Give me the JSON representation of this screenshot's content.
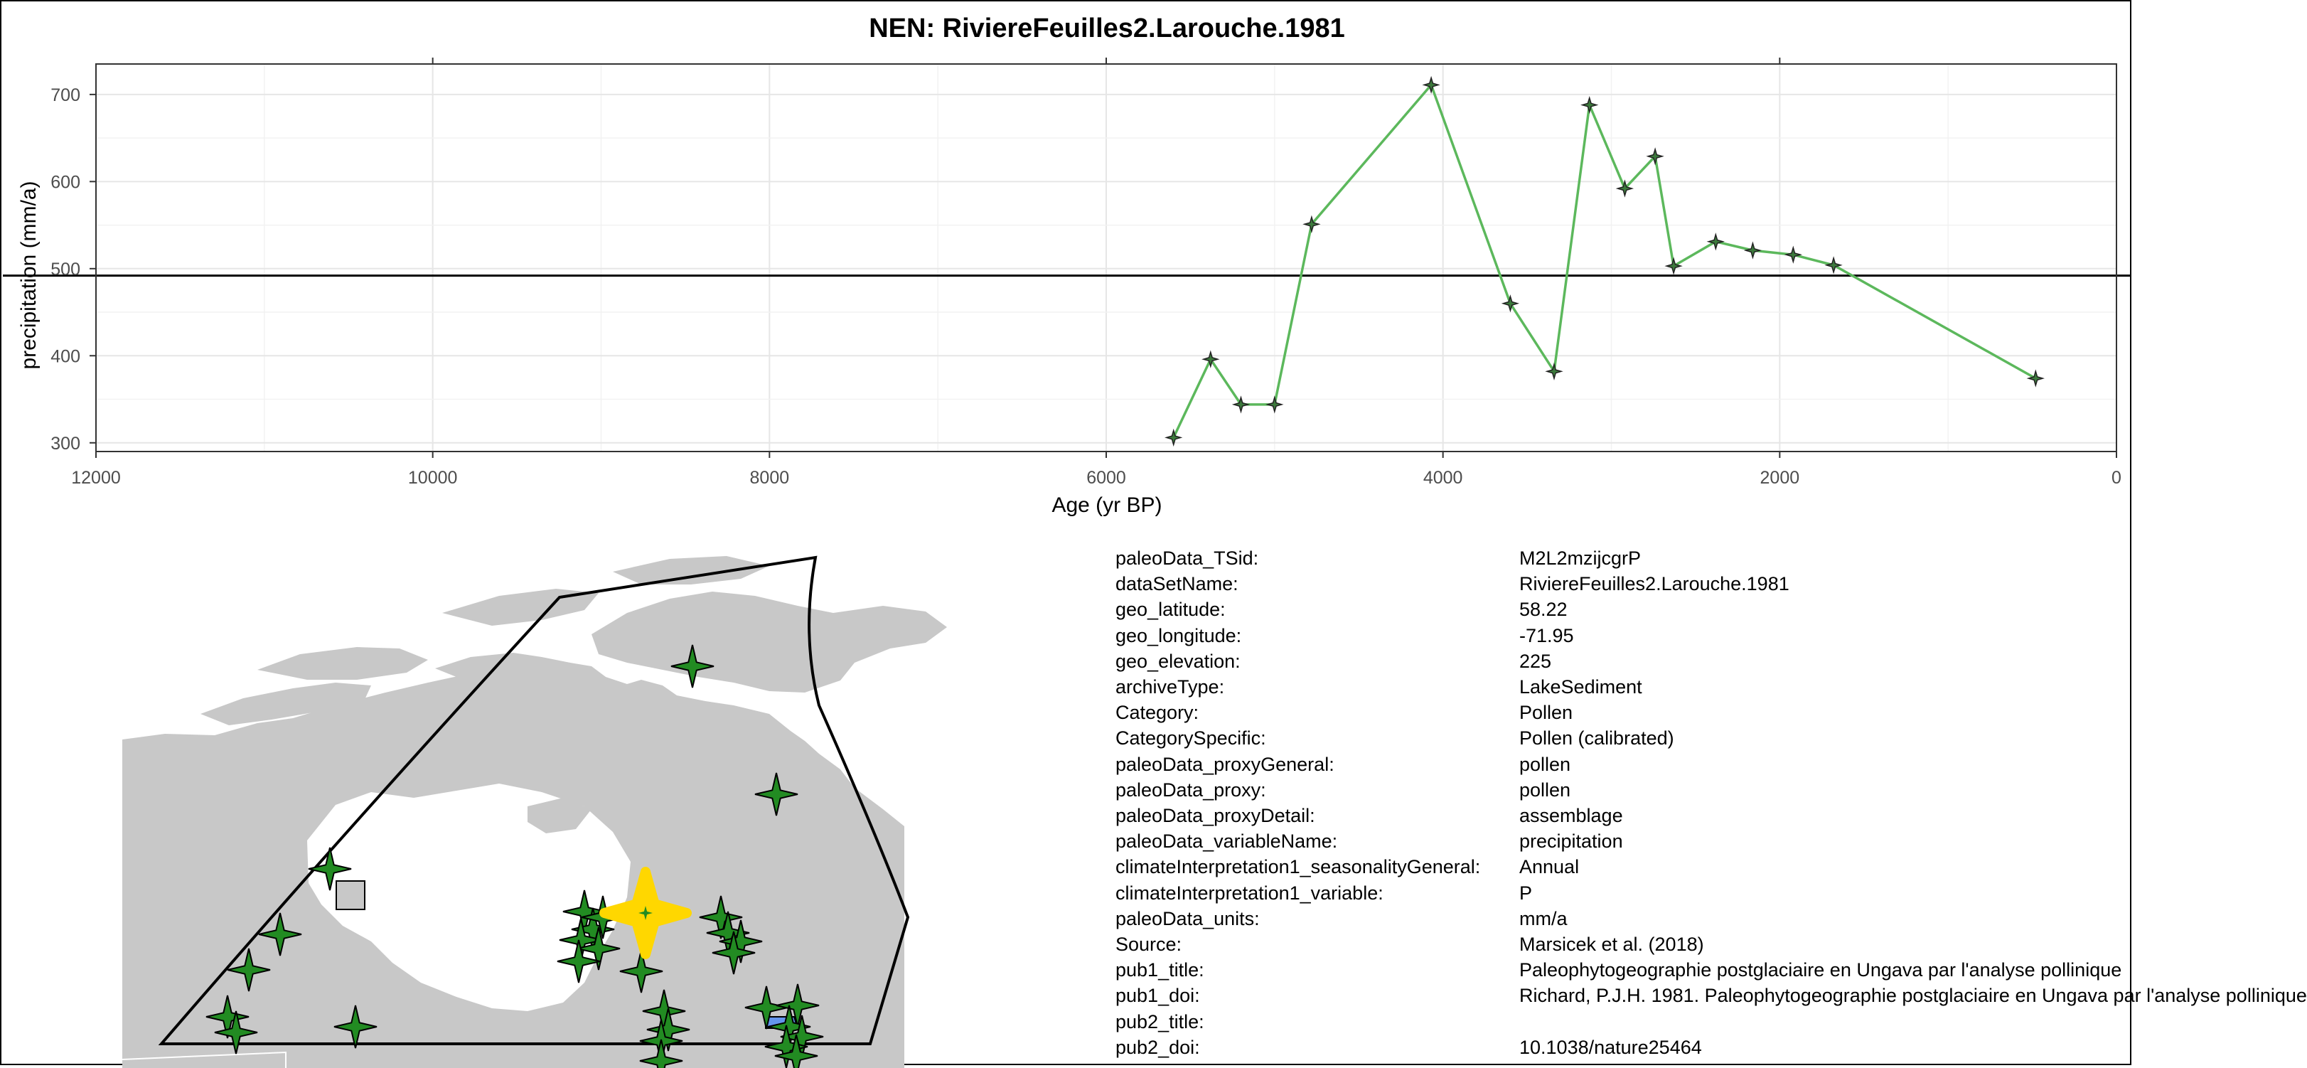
{
  "chart_data": {
    "type": "line",
    "title": "NEN: RiviereFeuilles2.Larouche.1981",
    "xlabel": "Age (yr BP)",
    "ylabel": "precipitation (mm/a)",
    "xlim": [
      12000,
      0
    ],
    "ylim": [
      290,
      735
    ],
    "x_reversed": true,
    "x_ticks": [
      12000,
      10000,
      8000,
      6000,
      4000,
      2000,
      0
    ],
    "y_ticks": [
      300,
      400,
      500,
      600,
      700
    ],
    "reference_line": 492,
    "grid": true,
    "series": [
      {
        "color": "#5cb85c",
        "marker": "star",
        "points": [
          {
            "x": 5600,
            "y": 306
          },
          {
            "x": 5380,
            "y": 396
          },
          {
            "x": 5200,
            "y": 344
          },
          {
            "x": 5000,
            "y": 344
          },
          {
            "x": 4780,
            "y": 551
          },
          {
            "x": 4070,
            "y": 711
          },
          {
            "x": 3600,
            "y": 460
          },
          {
            "x": 3340,
            "y": 382
          },
          {
            "x": 3130,
            "y": 688
          },
          {
            "x": 2920,
            "y": 592
          },
          {
            "x": 2740,
            "y": 629
          },
          {
            "x": 2630,
            "y": 503
          },
          {
            "x": 2380,
            "y": 531
          },
          {
            "x": 2160,
            "y": 521
          },
          {
            "x": 1920,
            "y": 516
          },
          {
            "x": 1680,
            "y": 504
          },
          {
            "x": 480,
            "y": 374
          }
        ]
      }
    ]
  },
  "map": {
    "land_color": "#c8c8c8",
    "site_color": "#228b22",
    "highlight_color": "#ffd700",
    "marker_other_color": "#6495ed"
  },
  "metadata": [
    {
      "key": "paleoData_TSid:",
      "value": "M2L2mzijcgrP"
    },
    {
      "key": "dataSetName:",
      "value": "RiviereFeuilles2.Larouche.1981"
    },
    {
      "key": "geo_latitude:",
      "value": "58.22"
    },
    {
      "key": "geo_longitude:",
      "value": "-71.95"
    },
    {
      "key": "geo_elevation:",
      "value": "225"
    },
    {
      "key": "archiveType:",
      "value": "LakeSediment"
    },
    {
      "key": "Category:",
      "value": "Pollen"
    },
    {
      "key": "CategorySpecific:",
      "value": "Pollen (calibrated)"
    },
    {
      "key": "paleoData_proxyGeneral:",
      "value": "pollen"
    },
    {
      "key": "paleoData_proxy:",
      "value": "pollen"
    },
    {
      "key": "paleoData_proxyDetail:",
      "value": "assemblage"
    },
    {
      "key": "paleoData_variableName:",
      "value": "precipitation"
    },
    {
      "key": "climateInterpretation1_seasonalityGeneral:",
      "value": "Annual"
    },
    {
      "key": "climateInterpretation1_variable:",
      "value": "P"
    },
    {
      "key": "paleoData_units:",
      "value": "mm/a"
    },
    {
      "key": "Source:",
      "value": "Marsicek et al. (2018)"
    },
    {
      "key": "pub1_title:",
      "value": "Paleophytogeographie postglaciaire en Ungava par l'analyse pollinique"
    },
    {
      "key": "pub1_doi:",
      "value": "Richard, P.J.H. 1981. Paleophytogeographie postglaciaire en Ungava par l'analyse pollinique"
    },
    {
      "key": "pub2_title:",
      "value": ""
    },
    {
      "key": "pub2_doi:",
      "value": "10.1038/nature25464"
    }
  ]
}
